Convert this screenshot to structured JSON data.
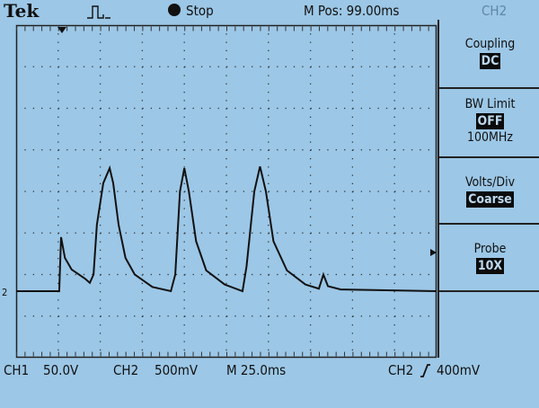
{
  "header": {
    "brand": "Tek",
    "trigger_status_icon": "acquisition-waveform-icon",
    "run_state": "Stop",
    "position": "M Pos: 99.00ms",
    "menu_channel": "CH2"
  },
  "menu": [
    {
      "label": "Coupling",
      "value": "DC"
    },
    {
      "label": "BW Limit",
      "value": "OFF",
      "sub": "100MHz"
    },
    {
      "label": "Volts/Div",
      "value": "Coarse"
    },
    {
      "label": "Probe",
      "value": "10X"
    },
    {
      "label": ""
    }
  ],
  "footer": {
    "ch1": "CH1",
    "ch1_scale": "50.0V",
    "ch2": "CH2",
    "ch2_scale": "500mV",
    "timebase": "M 25.0ms",
    "trig_source": "CH2",
    "trig_slope_icon": "rising-edge-icon",
    "trig_level": "400mV"
  },
  "markers": {
    "ground": "2",
    "trigger_level_mv": 400
  },
  "chart_data": {
    "type": "line",
    "xlabel": "",
    "ylabel": "",
    "x_units": "ms",
    "y_units": "mV",
    "xlim": [
      0,
      250
    ],
    "ylim": [
      -800,
      3200
    ],
    "x_per_div": 25,
    "y_per_div": 500,
    "grid": true,
    "trace_color": "#111111",
    "series": [
      {
        "x": [
          0,
          25.6,
          26.7,
          29,
          33,
          41,
          43.8,
          46,
          48,
          51.8,
          55.6,
          57.7,
          60.9,
          65,
          70.5,
          81,
          92,
          94.6,
          97.4,
          100,
          102.7,
          107,
          113,
          124,
          134.6,
          137,
          141.6,
          145,
          148.5,
          153,
          161,
          172,
          180,
          182.7,
          185.4,
          193,
          250
        ],
        "y": [
          0,
          0,
          650,
          400,
          260,
          150,
          100,
          200,
          800,
          1300,
          1480,
          1300,
          800,
          400,
          200,
          50,
          0,
          200,
          1200,
          1480,
          1200,
          600,
          250,
          80,
          0,
          300,
          1200,
          1500,
          1200,
          600,
          250,
          80,
          30,
          200,
          60,
          20,
          0
        ]
      }
    ]
  }
}
